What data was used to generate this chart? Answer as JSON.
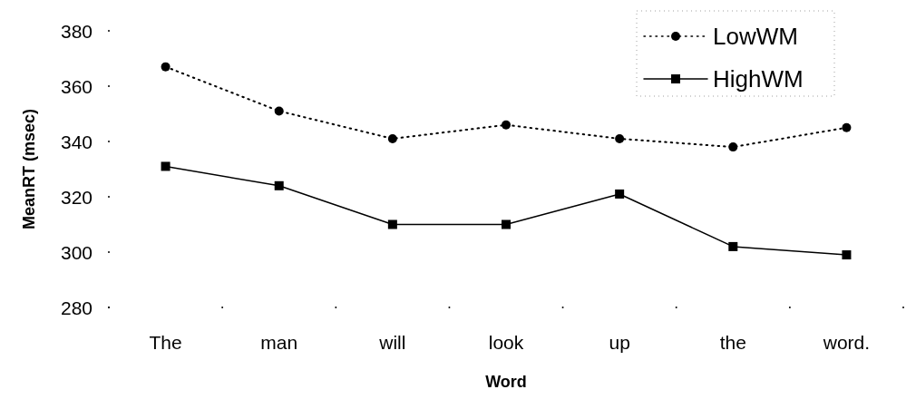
{
  "chart_data": {
    "type": "line",
    "xlabel": "Word",
    "ylabel": "MeanRT (msec)",
    "categories": [
      "The",
      "man",
      "will",
      "look",
      "up",
      "the",
      "word."
    ],
    "series": [
      {
        "name": "LowWM",
        "color": "#000000",
        "marker": "circle",
        "line_style": "dotted",
        "values": [
          367,
          351,
          341,
          346,
          341,
          338,
          345
        ]
      },
      {
        "name": "HighWM",
        "color": "#000000",
        "marker": "square",
        "line_style": "solid",
        "values": [
          331,
          324,
          310,
          310,
          321,
          302,
          299
        ]
      }
    ],
    "ylim": [
      280,
      380
    ],
    "yticks": [
      280,
      300,
      320,
      340,
      360,
      380
    ],
    "grid": false,
    "legend": "top right"
  }
}
